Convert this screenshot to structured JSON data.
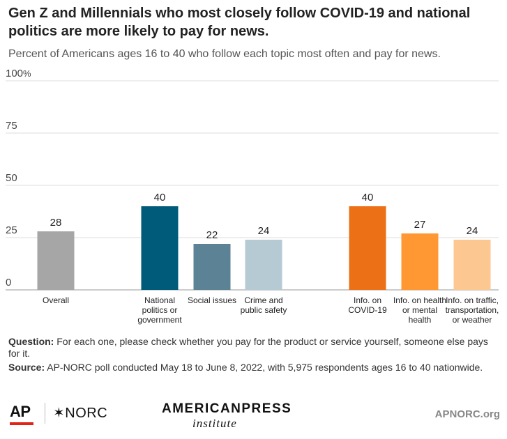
{
  "header": {
    "title": "Gen Z and Millennials who most closely follow COVID-19 and national politics are more likely to pay for news.",
    "subtitle": "Percent of Americans ages 16 to 40 who follow each topic most often and pay for news."
  },
  "chart_data": {
    "type": "bar",
    "categories": [
      "Overall",
      "National politics or government",
      "Social issues",
      "Crime and public safety",
      "Info. on COVID-19",
      "Info. on health or mental health",
      "Info. on traffic, transportation, or weather"
    ],
    "category_lines": [
      [
        "Overall"
      ],
      [
        "National",
        "politics or",
        "government"
      ],
      [
        "Social issues"
      ],
      [
        "Crime and",
        "public safety"
      ],
      [
        "Info. on",
        "COVID-19"
      ],
      [
        "Info. on health",
        "or mental",
        "health"
      ],
      [
        "Info. on traffic,",
        "transportation,",
        "or weather"
      ]
    ],
    "values": [
      28,
      40,
      22,
      24,
      40,
      27,
      24
    ],
    "colors": [
      "#a6a6a6",
      "#005a7a",
      "#5c8296",
      "#b6cad4",
      "#ec7016",
      "#ff9833",
      "#fdc792"
    ],
    "y_ticks": [
      "0",
      "25",
      "50",
      "75",
      "100"
    ],
    "y_tick_values": [
      0,
      25,
      50,
      75,
      100
    ],
    "y_unit": "%",
    "ylim": [
      0,
      100
    ],
    "grid": true
  },
  "notes": {
    "question_label": "Question:",
    "question_text": "For each one, please check whether you pay for the product or service yourself, someone else pays for it.",
    "source_label": "Source:",
    "source_text": "AP-NORC poll conducted May 18 to June 8, 2022, with 5,975 respondents ages 16 to 40 nationwide."
  },
  "footer": {
    "logo_ap": "AP",
    "logo_norc": "✶NORC",
    "logo_api_top": "AMERICANPRESS",
    "logo_api_bottom": "institute",
    "url": "APNORC.org"
  }
}
